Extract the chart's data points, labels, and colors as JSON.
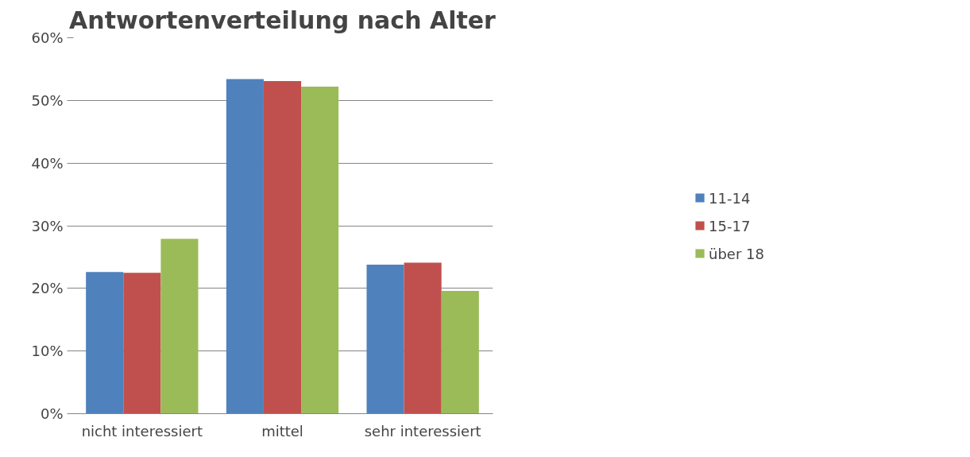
{
  "chart_data": {
    "type": "bar",
    "title": "Antwortenverteilung nach Alter",
    "categories": [
      "nicht interessiert",
      "mittel",
      "sehr interessiert"
    ],
    "series": [
      {
        "name": "11-14",
        "color": "#4f81bd",
        "values": [
          22.6,
          53.4,
          23.8
        ]
      },
      {
        "name": "15-17",
        "color": "#c0504d",
        "values": [
          22.5,
          53.1,
          24.1
        ]
      },
      {
        "name": "über 18",
        "color": "#9bbb59",
        "values": [
          27.9,
          52.2,
          19.6
        ]
      }
    ],
    "ylim": [
      0,
      60
    ],
    "yticks": [
      {
        "value": 0,
        "label": "0%"
      },
      {
        "value": 10,
        "label": "10%"
      },
      {
        "value": 20,
        "label": "20%"
      },
      {
        "value": 30,
        "label": "30%"
      },
      {
        "value": 40,
        "label": "40%"
      },
      {
        "value": 50,
        "label": "50%"
      },
      {
        "value": 60,
        "label": "60%"
      }
    ],
    "grid": "y",
    "legend": "right"
  }
}
